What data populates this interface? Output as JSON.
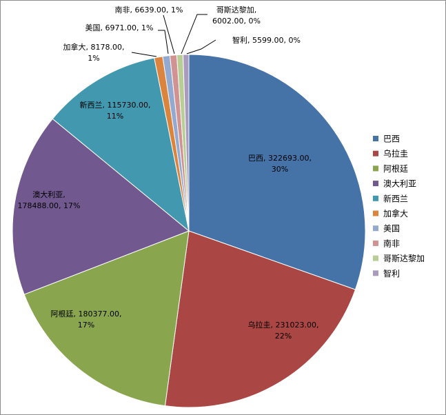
{
  "chart_data": {
    "type": "pie",
    "categories": [
      "巴西",
      "乌拉圭",
      "阿根廷",
      "澳大利亚",
      "新西兰",
      "加拿大",
      "美国",
      "南非",
      "哥斯达黎加",
      "智利"
    ],
    "values": [
      322693.0,
      231023.0,
      180377.0,
      178488.0,
      115730.0,
      8178.0,
      6971.0,
      6639.0,
      6002.0,
      5599.0
    ],
    "percent_labels": [
      "30%",
      "22%",
      "17%",
      "17%",
      "11%",
      "1%",
      "1%",
      "1%",
      "0%",
      "0%"
    ],
    "value_labels": [
      "322693.00",
      "231023.00",
      "180377.00",
      "178488.00",
      "115730.00",
      "8178.00",
      "6971.00",
      "6639.00",
      "6002.00",
      "5599.00"
    ],
    "colors": [
      "#4572a7",
      "#aa4643",
      "#89a54e",
      "#71588f",
      "#4198af",
      "#db843d",
      "#93a9cf",
      "#d19392",
      "#b9cd96",
      "#a99bbd"
    ],
    "start_angle_deg": 0,
    "direction": "clockwise",
    "legend_position": "right"
  }
}
